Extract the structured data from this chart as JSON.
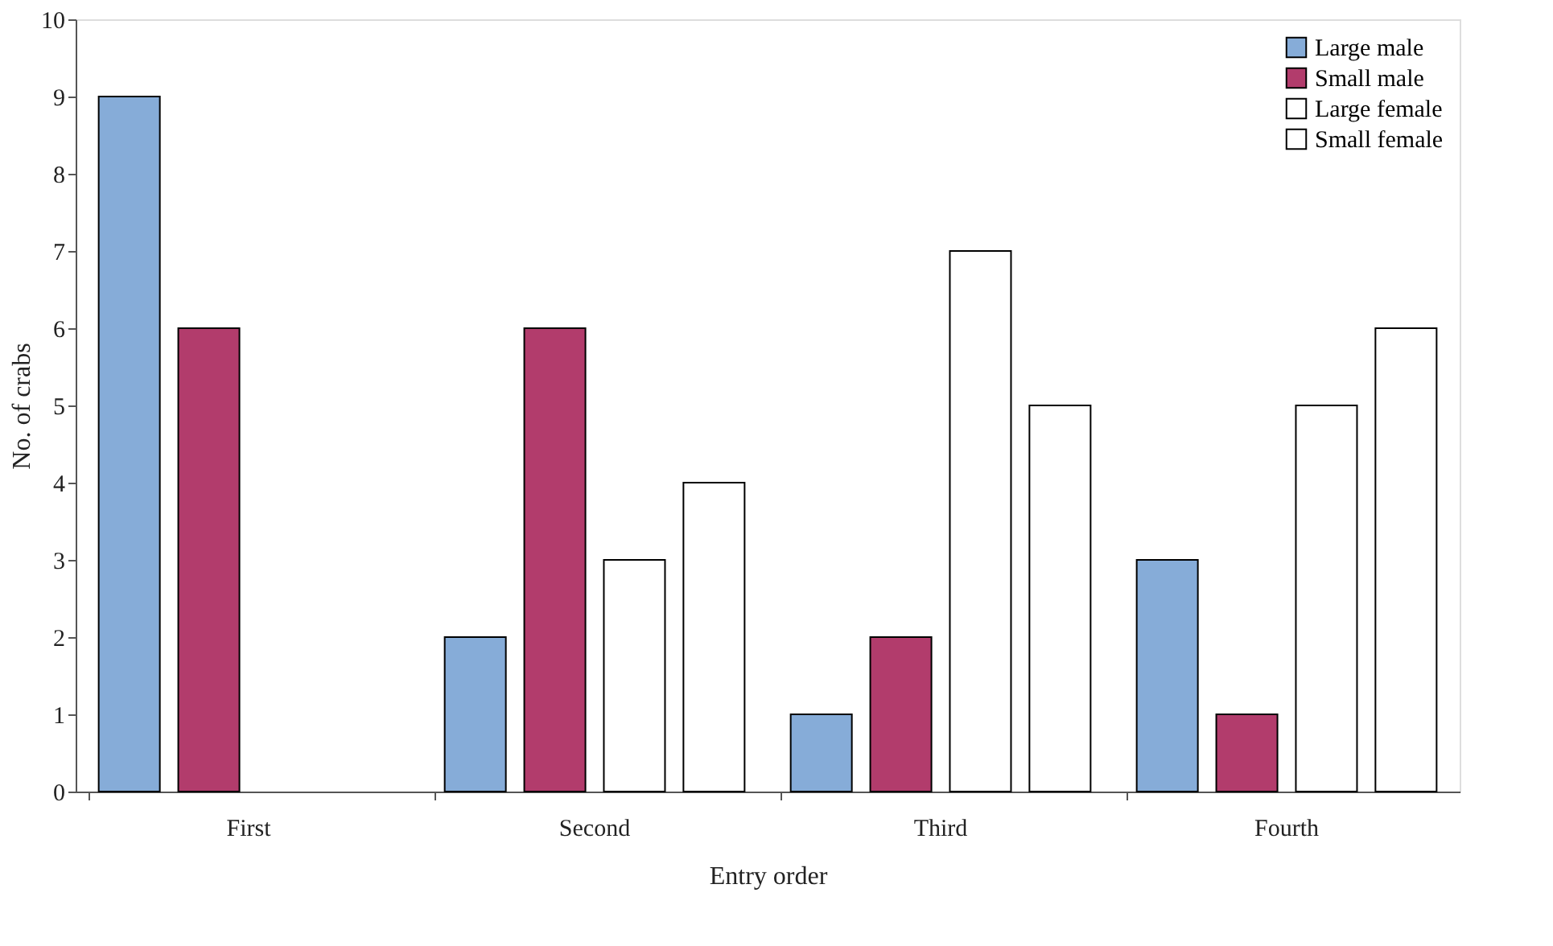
{
  "chart_data": {
    "type": "bar",
    "xlabel": "Entry order",
    "ylabel": "No. of crabs",
    "categories": [
      "First",
      "Second",
      "Third",
      "Fourth"
    ],
    "series": [
      {
        "name": "Large male",
        "color": "#86acd8",
        "values": [
          9,
          2,
          1,
          3
        ]
      },
      {
        "name": "Small male",
        "color": "#b23c6c",
        "values": [
          6,
          6,
          2,
          1
        ]
      },
      {
        "name": "Large female",
        "color": "#ffffff",
        "values": [
          0,
          3,
          7,
          5
        ]
      },
      {
        "name": "Small female",
        "color": "#ffffff",
        "values": [
          0,
          4,
          5,
          6
        ]
      }
    ],
    "ylim": [
      0,
      10
    ],
    "yticks": [
      0,
      1,
      2,
      3,
      4,
      5,
      6,
      7,
      8,
      9,
      10
    ],
    "grid": false,
    "legend": "top right"
  }
}
